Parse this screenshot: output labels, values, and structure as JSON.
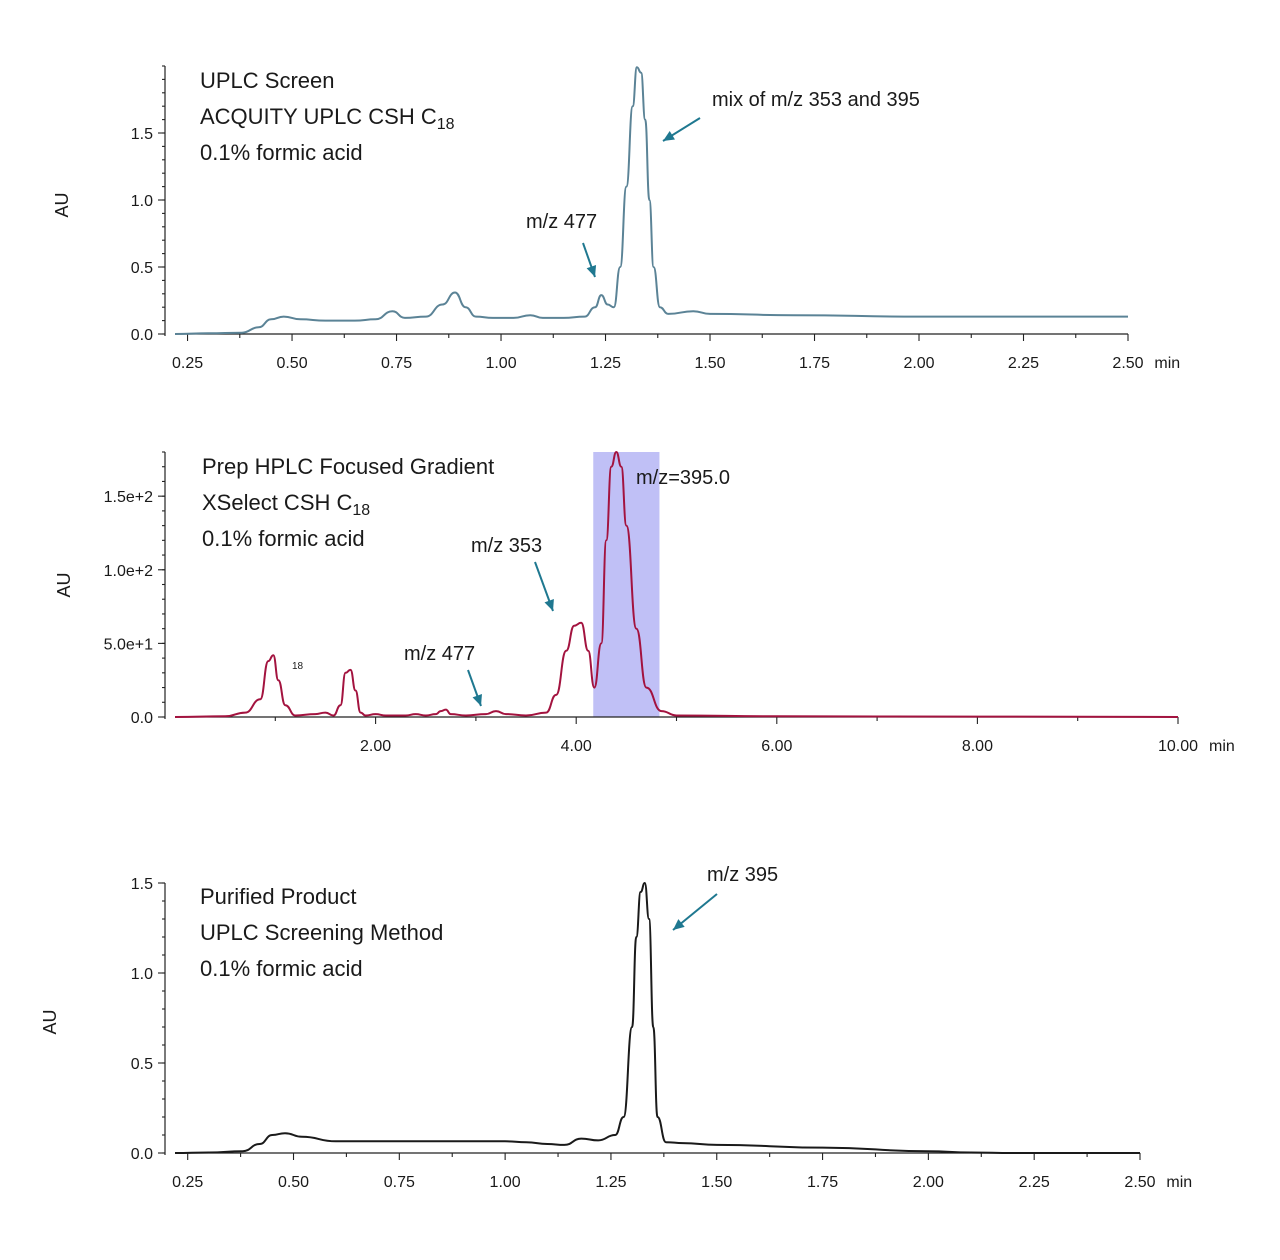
{
  "chart_data": [
    {
      "type": "line",
      "id": "uplc-screen",
      "title_lines": [
        "UPLC Screen",
        "ACQUITY UPLC CSH C",
        "0.1% formic acid"
      ],
      "title_subscript": "18",
      "ylabel": "AU",
      "xlabel": "min",
      "xlim": [
        0.22,
        2.5
      ],
      "ylim": [
        0,
        2.0
      ],
      "x_ticks": [
        0.25,
        0.5,
        0.75,
        1.0,
        1.25,
        1.5,
        1.75,
        2.0,
        2.25,
        2.5
      ],
      "x_tick_labels": [
        "0.25",
        "0.50",
        "0.75",
        "1.00",
        "1.25",
        "1.50",
        "1.75",
        "2.00",
        "2.25",
        "2.50"
      ],
      "y_ticks": [
        0,
        0.5,
        1.0,
        1.5
      ],
      "y_tick_labels": [
        "0.0",
        "0.5",
        "1.0",
        "1.5"
      ],
      "line_color": "#5b8396",
      "series": [
        {
          "x": [
            0.22,
            0.3,
            0.38,
            0.42,
            0.45,
            0.48,
            0.52,
            0.58,
            0.65,
            0.7,
            0.74,
            0.77,
            0.82,
            0.86,
            0.89,
            0.915,
            0.94,
            0.98,
            1.03,
            1.07,
            1.1,
            1.15,
            1.2,
            1.225,
            1.24,
            1.255,
            1.27,
            1.285,
            1.3,
            1.315,
            1.325,
            1.335,
            1.345,
            1.355,
            1.365,
            1.38,
            1.4,
            1.46,
            1.5,
            1.7,
            2.0,
            2.3,
            2.5
          ],
          "y": [
            0.0,
            0.005,
            0.01,
            0.05,
            0.11,
            0.13,
            0.11,
            0.1,
            0.1,
            0.11,
            0.17,
            0.12,
            0.13,
            0.22,
            0.31,
            0.2,
            0.13,
            0.12,
            0.12,
            0.14,
            0.12,
            0.12,
            0.13,
            0.2,
            0.29,
            0.22,
            0.2,
            0.5,
            1.1,
            1.7,
            1.99,
            1.95,
            1.6,
            1.0,
            0.5,
            0.2,
            0.15,
            0.17,
            0.15,
            0.14,
            0.13,
            0.13,
            0.13
          ]
        }
      ],
      "annotations": [
        {
          "text": "mix of m/z 353 and 395",
          "x": 1.35,
          "y": 1.85
        },
        {
          "text": "m/z 477",
          "x": 1.22,
          "y": 0.42
        }
      ]
    },
    {
      "type": "line",
      "id": "prep-hplc",
      "title_lines": [
        "Prep HPLC Focused Gradient",
        "XSelect CSH C",
        "0.1% formic acid"
      ],
      "title_subscript": "18",
      "ylabel": "AU",
      "xlabel": "min",
      "xlim": [
        0.0,
        10.0
      ],
      "ylim": [
        0,
        180
      ],
      "x_ticks": [
        2.0,
        4.0,
        6.0,
        8.0,
        10.0
      ],
      "x_tick_labels": [
        "2.00",
        "4.00",
        "6.00",
        "8.00",
        "10.00"
      ],
      "y_ticks": [
        0,
        50,
        100,
        150
      ],
      "y_tick_labels": [
        "0.0",
        "5.0e+1",
        "1.0e+2",
        "1.5e+2"
      ],
      "line_color": "#a3133f",
      "highlight": {
        "x_start": 4.17,
        "x_end": 4.83,
        "color": "#b9b9f5",
        "label": "m/z=395.0"
      },
      "stray_label": "18",
      "series": [
        {
          "x": [
            0.0,
            0.5,
            0.7,
            0.85,
            0.93,
            0.98,
            1.03,
            1.1,
            1.2,
            1.4,
            1.5,
            1.58,
            1.65,
            1.7,
            1.75,
            1.8,
            1.85,
            1.9,
            2.0,
            2.1,
            2.3,
            2.4,
            2.5,
            2.6,
            2.65,
            2.7,
            2.75,
            2.9,
            3.1,
            3.2,
            3.3,
            3.5,
            3.7,
            3.8,
            3.9,
            3.98,
            4.05,
            4.12,
            4.18,
            4.25,
            4.3,
            4.35,
            4.4,
            4.45,
            4.5,
            4.6,
            4.7,
            4.85,
            5.0,
            6.0,
            8.0,
            10.0
          ],
          "y": [
            0.0,
            0.5,
            3.0,
            12.0,
            38.0,
            42.0,
            25.0,
            8.0,
            1.0,
            2.0,
            3.0,
            1.0,
            8.0,
            30.0,
            32.0,
            18.0,
            3.0,
            1.0,
            2.0,
            1.0,
            1.0,
            2.0,
            1.0,
            2.0,
            4.0,
            5.0,
            2.0,
            1.0,
            2.0,
            4.0,
            2.0,
            1.0,
            3.0,
            15.0,
            45.0,
            62.0,
            64.0,
            45.0,
            20.0,
            50.0,
            120.0,
            170.0,
            180.0,
            170.0,
            130.0,
            60.0,
            20.0,
            4.0,
            1.0,
            0.5,
            0.3,
            0.0
          ]
        }
      ],
      "annotations": [
        {
          "text": "m/z 353",
          "x": 3.9,
          "y": 72
        },
        {
          "text": "m/z 477",
          "x": 3.2,
          "y": 8
        }
      ]
    },
    {
      "type": "line",
      "id": "purified-product",
      "title_lines": [
        "Purified Product",
        "UPLC Screening Method",
        "0.1% formic acid"
      ],
      "ylabel": "AU",
      "xlabel": "min",
      "xlim": [
        0.22,
        2.5
      ],
      "ylim": [
        0,
        1.5
      ],
      "x_ticks": [
        0.25,
        0.5,
        0.75,
        1.0,
        1.25,
        1.5,
        1.75,
        2.0,
        2.25,
        2.5
      ],
      "x_tick_labels": [
        "0.25",
        "0.50",
        "0.75",
        "1.00",
        "1.25",
        "1.50",
        "1.75",
        "2.00",
        "2.25",
        "2.50"
      ],
      "y_ticks": [
        0,
        0.5,
        1.0,
        1.5
      ],
      "y_tick_labels": [
        "0.0",
        "0.5",
        "1.0",
        "1.5"
      ],
      "line_color": "#1a1a1a",
      "series": [
        {
          "x": [
            0.22,
            0.3,
            0.38,
            0.42,
            0.45,
            0.48,
            0.52,
            0.6,
            0.8,
            1.0,
            1.05,
            1.1,
            1.14,
            1.18,
            1.22,
            1.26,
            1.28,
            1.3,
            1.31,
            1.32,
            1.33,
            1.34,
            1.35,
            1.36,
            1.38,
            1.42,
            1.5,
            1.75,
            2.0,
            2.1,
            2.2,
            2.5
          ],
          "y": [
            0.0,
            0.003,
            0.01,
            0.05,
            0.1,
            0.11,
            0.09,
            0.065,
            0.065,
            0.065,
            0.06,
            0.05,
            0.045,
            0.08,
            0.07,
            0.1,
            0.2,
            0.7,
            1.2,
            1.45,
            1.5,
            1.3,
            0.7,
            0.2,
            0.06,
            0.055,
            0.045,
            0.03,
            0.01,
            0.003,
            0.0,
            0.0
          ]
        }
      ],
      "annotations": [
        {
          "text": "m/z 395",
          "x": 1.4,
          "y": 1.3
        }
      ]
    }
  ]
}
